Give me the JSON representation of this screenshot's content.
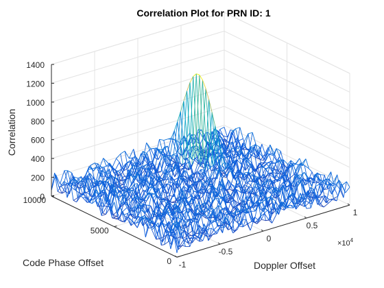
{
  "chart_data": {
    "type": "surface-mesh",
    "title": "Correlation Plot for PRN ID: 1",
    "xlabel": "Doppler Offset",
    "ylabel": "Code Phase Offset",
    "zlabel": "Correlation",
    "xlim": [
      -10000,
      10000
    ],
    "ylim": [
      0,
      10000
    ],
    "zlim": [
      0,
      1400
    ],
    "x_ticks": [
      -1,
      -0.5,
      0,
      0.5,
      1
    ],
    "x_tick_labels": [
      "-1",
      "-0.5",
      "0",
      "0.5",
      "1"
    ],
    "x_exponent_label": "×10",
    "x_exponent_power": "4",
    "y_ticks": [
      0,
      5000,
      10000
    ],
    "y_tick_labels": [
      "0",
      "5000",
      "10000"
    ],
    "z_ticks": [
      0,
      200,
      400,
      600,
      800,
      1000,
      1200,
      1400
    ],
    "z_tick_labels": [
      "0",
      "200",
      "400",
      "600",
      "800",
      "1000",
      "1200",
      "1400"
    ],
    "noise_floor_max": 300,
    "peak": {
      "doppler_offset": 3500,
      "code_phase_offset": 7600,
      "correlation": 1080
    },
    "grid": true,
    "colormap": "parula"
  }
}
